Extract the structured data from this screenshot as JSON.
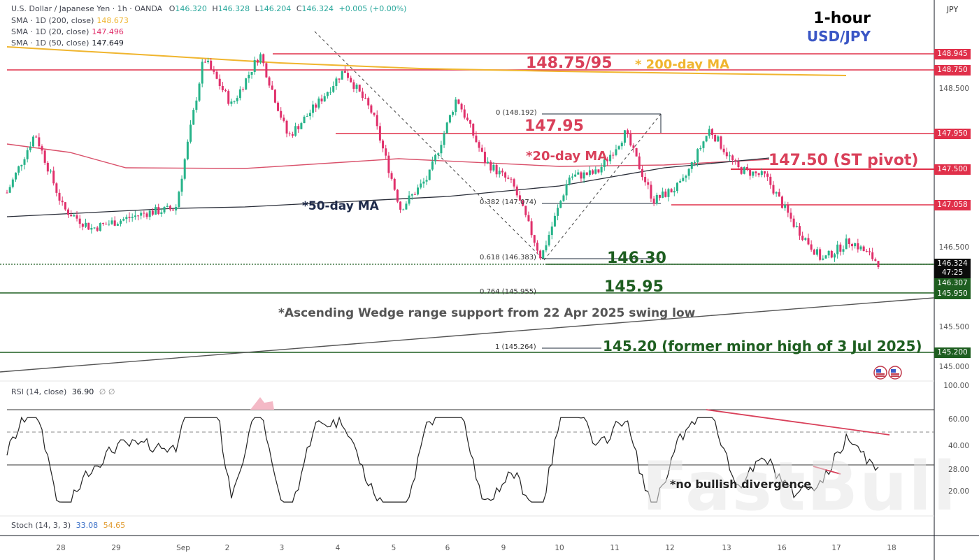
{
  "header": {
    "symbol_line": "U.S. Dollar / Japanese Yen · 1h · OANDA",
    "ohlc": {
      "open_label": "O",
      "open": "146.320",
      "high_label": "H",
      "high": "146.328",
      "low_label": "L",
      "low": "146.204",
      "close_label": "C",
      "close": "146.324",
      "change": "+0.005 (+0.00%)"
    },
    "indicators": [
      {
        "label": "SMA · 1D (200, close)",
        "value": "148.673",
        "color": "#f0b52e"
      },
      {
        "label": "SMA · 1D (20, close)",
        "value": "147.496",
        "color": "#e0306b"
      },
      {
        "label": "SMA · 1D (50, close)",
        "value": "147.649",
        "color": "#131722"
      }
    ]
  },
  "title": {
    "timeframe": "1-hour",
    "pair": "USD/JPY"
  },
  "currency_box": "JPY",
  "annotations": {
    "res_148_75_95": "148.75/95",
    "ma200": "* 200-day MA",
    "lvl_147_95": "147.95",
    "ma20": "*20-day MA",
    "st_pivot": "147.50 (ST pivot)",
    "ma50": "*50-day MA",
    "lvl_146_30": "146.30",
    "lvl_145_95": "145.95",
    "wedge": "*Ascending Wedge range support from 22 Apr 2025 swing low",
    "lvl_145_20": "145.20 (former minor high of 3 Jul 2025)",
    "fib_0": "0 (148.192)",
    "fib_0382": "0.382 (147.074)",
    "fib_0618": "0.618 (146.383)",
    "fib_0764": "0.764 (145.955)",
    "fib_1": "1 (145.264)",
    "no_div": "*no bullish divergence"
  },
  "price_axis": {
    "ticks": [
      "148.500",
      "146.500",
      "145.500",
      "145.000"
    ],
    "tags": [
      {
        "value": "148.945",
        "color": "#e0304a"
      },
      {
        "value": "148.750",
        "color": "#e0304a"
      },
      {
        "value": "147.950",
        "color": "#e0304a"
      },
      {
        "value": "147.500",
        "color": "#e0304a"
      },
      {
        "value": "147.058",
        "color": "#e0304a"
      },
      {
        "value": "146.324",
        "sub": "47:25",
        "color": "#0b0b0b"
      },
      {
        "value": "146.307",
        "color": "#1e5e20"
      },
      {
        "value": "145.950",
        "color": "#1e5e20"
      },
      {
        "value": "145.200",
        "color": "#1e5e20"
      }
    ]
  },
  "rsi": {
    "label": "RSI (14, close)",
    "value": "36.90",
    "extra": "∅ ∅",
    "ticks": [
      "100.00",
      "60.00",
      "40.00",
      "28.00",
      "20.00"
    ]
  },
  "stoch": {
    "label": "Stoch (14, 3, 3)",
    "k": "33.08",
    "d": "54.65"
  },
  "x_axis": {
    "labels": [
      "28",
      "29",
      "Sep",
      "2",
      "3",
      "4",
      "5",
      "6",
      "9",
      "10",
      "11",
      "12",
      "13",
      "16",
      "17",
      "18"
    ]
  },
  "watermark": "FastBull",
  "chart_data": {
    "type": "candlestick",
    "title": "USD/JPY 1-hour",
    "symbol": "U.S. Dollar / Japanese Yen · 1h · OANDA",
    "x_labels": [
      "28",
      "29",
      "Sep",
      "2",
      "3",
      "4",
      "5",
      "6",
      "9",
      "10",
      "11",
      "12",
      "13",
      "16",
      "17",
      "18"
    ],
    "ylim": [
      144.9,
      149.1
    ],
    "last": {
      "open": 146.32,
      "high": 146.328,
      "low": 146.204,
      "close": 146.324
    },
    "approx_path": [
      {
        "x": "28",
        "price": 147.2
      },
      {
        "x": "28b",
        "price": 147.95
      },
      {
        "x": "29",
        "price": 147.0
      },
      {
        "x": "29b",
        "price": 146.75
      },
      {
        "x": "Sep",
        "price": 146.85
      },
      {
        "x": "2",
        "price": 146.95
      },
      {
        "x": "2b",
        "price": 147.0
      },
      {
        "x": "3",
        "price": 148.9
      },
      {
        "x": "3b",
        "price": 148.3
      },
      {
        "x": "3c",
        "price": 148.95
      },
      {
        "x": "4",
        "price": 147.9
      },
      {
        "x": "4b",
        "price": 148.3
      },
      {
        "x": "5",
        "price": 148.75
      },
      {
        "x": "5b",
        "price": 148.2
      },
      {
        "x": "6",
        "price": 147.0
      },
      {
        "x": "6b",
        "price": 147.4
      },
      {
        "x": "9",
        "price": 148.4
      },
      {
        "x": "9b",
        "price": 147.6
      },
      {
        "x": "9c",
        "price": 147.3
      },
      {
        "x": "10",
        "price": 146.38
      },
      {
        "x": "10b",
        "price": 147.4
      },
      {
        "x": "11",
        "price": 147.45
      },
      {
        "x": "11b",
        "price": 147.95
      },
      {
        "x": "12",
        "price": 147.1
      },
      {
        "x": "12b",
        "price": 147.3
      },
      {
        "x": "13",
        "price": 148.0
      },
      {
        "x": "13b",
        "price": 147.5
      },
      {
        "x": "16",
        "price": 147.4
      },
      {
        "x": "16b",
        "price": 146.8
      },
      {
        "x": "17",
        "price": 146.35
      },
      {
        "x": "17b",
        "price": 146.6
      },
      {
        "x": "18",
        "price": 146.32
      }
    ],
    "series": [
      {
        "name": "SMA 1D (200)",
        "value": 148.673,
        "color": "#f0b52e"
      },
      {
        "name": "SMA 1D (20)",
        "value": 147.496,
        "color": "#e0306b"
      },
      {
        "name": "SMA 1D (50)",
        "value": 147.649,
        "color": "#131722"
      }
    ],
    "horizontal_levels": [
      {
        "price": 148.945,
        "color": "#e0304a"
      },
      {
        "price": 148.75,
        "color": "#e0304a"
      },
      {
        "price": 147.95,
        "color": "#e0304a"
      },
      {
        "price": 147.5,
        "color": "#e0304a",
        "label": "ST pivot"
      },
      {
        "price": 147.058,
        "color": "#e0304a"
      },
      {
        "price": 146.307,
        "color": "#1e5e20"
      },
      {
        "price": 145.95,
        "color": "#1e5e20"
      },
      {
        "price": 145.2,
        "color": "#1e5e20"
      }
    ],
    "fibonacci": [
      {
        "level": "0",
        "price": 148.192
      },
      {
        "level": "0.382",
        "price": 147.074
      },
      {
        "level": "0.618",
        "price": 146.383
      },
      {
        "level": "0.764",
        "price": 145.955
      },
      {
        "level": "1",
        "price": 145.264
      }
    ],
    "rsi": {
      "period": 14,
      "value": 36.9,
      "bands": [
        70,
        50,
        30
      ],
      "ylim": [
        10,
        100
      ]
    },
    "stoch": {
      "params": "14,3,3",
      "k": 33.08,
      "d": 54.65
    }
  }
}
